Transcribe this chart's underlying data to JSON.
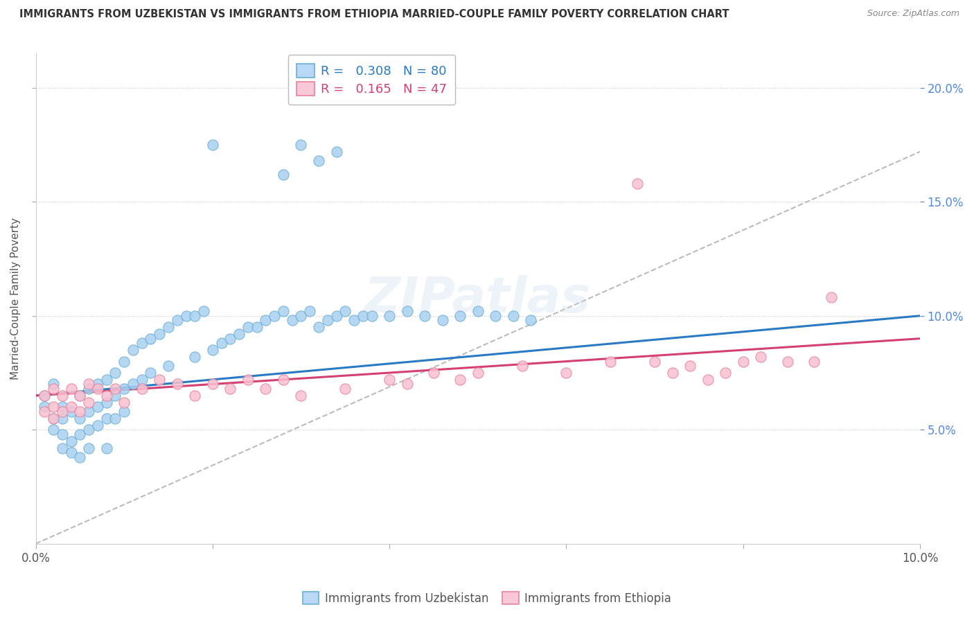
{
  "title": "IMMIGRANTS FROM UZBEKISTAN VS IMMIGRANTS FROM ETHIOPIA MARRIED-COUPLE FAMILY POVERTY CORRELATION CHART",
  "source": "Source: ZipAtlas.com",
  "ylabel": "Married-Couple Family Poverty",
  "xlim": [
    0.0,
    0.1
  ],
  "ylim": [
    0.0,
    0.215
  ],
  "yticks": [
    0.05,
    0.1,
    0.15,
    0.2
  ],
  "ytick_labels": [
    "5.0%",
    "10.0%",
    "15.0%",
    "20.0%"
  ],
  "xticks": [
    0.0,
    0.02,
    0.04,
    0.06,
    0.08,
    0.1
  ],
  "xtick_labels": [
    "0.0%",
    "",
    "",
    "",
    "",
    "10.0%"
  ],
  "R_uzbekistan": 0.308,
  "N_uzbekistan": 80,
  "R_ethiopia": 0.165,
  "N_ethiopia": 47,
  "blue_scatter_color": "#a8d0f0",
  "blue_scatter_edge": "#6aaed6",
  "pink_scatter_color": "#f9c0d0",
  "pink_scatter_edge": "#e8829a",
  "blue_line_color": "#2979c5",
  "pink_line_color": "#d44070",
  "gray_line_color": "#bbbbbb",
  "tick_color_right": "#5588dd",
  "uzbekistan_x": [
    0.001,
    0.001,
    0.002,
    0.002,
    0.002,
    0.003,
    0.003,
    0.003,
    0.003,
    0.004,
    0.004,
    0.004,
    0.005,
    0.005,
    0.005,
    0.005,
    0.006,
    0.006,
    0.006,
    0.006,
    0.007,
    0.007,
    0.007,
    0.008,
    0.008,
    0.008,
    0.008,
    0.009,
    0.009,
    0.009,
    0.01,
    0.01,
    0.01,
    0.011,
    0.011,
    0.012,
    0.012,
    0.013,
    0.013,
    0.014,
    0.015,
    0.015,
    0.016,
    0.017,
    0.018,
    0.018,
    0.019,
    0.02,
    0.021,
    0.022,
    0.023,
    0.024,
    0.025,
    0.026,
    0.027,
    0.028,
    0.029,
    0.03,
    0.031,
    0.032,
    0.033,
    0.034,
    0.035,
    0.036,
    0.037,
    0.038,
    0.04,
    0.042,
    0.044,
    0.046,
    0.048,
    0.05,
    0.052,
    0.054,
    0.056,
    0.028,
    0.03,
    0.032,
    0.034,
    0.02
  ],
  "uzbekistan_y": [
    0.065,
    0.06,
    0.07,
    0.055,
    0.05,
    0.06,
    0.055,
    0.048,
    0.042,
    0.058,
    0.045,
    0.04,
    0.065,
    0.055,
    0.048,
    0.038,
    0.068,
    0.058,
    0.05,
    0.042,
    0.07,
    0.06,
    0.052,
    0.072,
    0.062,
    0.055,
    0.042,
    0.075,
    0.065,
    0.055,
    0.08,
    0.068,
    0.058,
    0.085,
    0.07,
    0.088,
    0.072,
    0.09,
    0.075,
    0.092,
    0.095,
    0.078,
    0.098,
    0.1,
    0.1,
    0.082,
    0.102,
    0.085,
    0.088,
    0.09,
    0.092,
    0.095,
    0.095,
    0.098,
    0.1,
    0.102,
    0.098,
    0.1,
    0.102,
    0.095,
    0.098,
    0.1,
    0.102,
    0.098,
    0.1,
    0.1,
    0.1,
    0.102,
    0.1,
    0.098,
    0.1,
    0.102,
    0.1,
    0.1,
    0.098,
    0.162,
    0.175,
    0.168,
    0.172,
    0.175
  ],
  "ethiopia_x": [
    0.001,
    0.001,
    0.002,
    0.002,
    0.002,
    0.003,
    0.003,
    0.004,
    0.004,
    0.005,
    0.005,
    0.006,
    0.006,
    0.007,
    0.008,
    0.009,
    0.01,
    0.012,
    0.014,
    0.016,
    0.018,
    0.02,
    0.022,
    0.024,
    0.026,
    0.028,
    0.03,
    0.035,
    0.04,
    0.042,
    0.045,
    0.048,
    0.05,
    0.055,
    0.06,
    0.065,
    0.068,
    0.07,
    0.072,
    0.074,
    0.076,
    0.078,
    0.08,
    0.082,
    0.085,
    0.088,
    0.09
  ],
  "ethiopia_y": [
    0.065,
    0.058,
    0.068,
    0.06,
    0.055,
    0.065,
    0.058,
    0.068,
    0.06,
    0.065,
    0.058,
    0.07,
    0.062,
    0.068,
    0.065,
    0.068,
    0.062,
    0.068,
    0.072,
    0.07,
    0.065,
    0.07,
    0.068,
    0.072,
    0.068,
    0.072,
    0.065,
    0.068,
    0.072,
    0.07,
    0.075,
    0.072,
    0.075,
    0.078,
    0.075,
    0.08,
    0.158,
    0.08,
    0.075,
    0.078,
    0.072,
    0.075,
    0.08,
    0.082,
    0.08,
    0.08,
    0.108
  ],
  "legend_blue_fill": "#b8d8f5",
  "legend_pink_fill": "#f9c8d8"
}
